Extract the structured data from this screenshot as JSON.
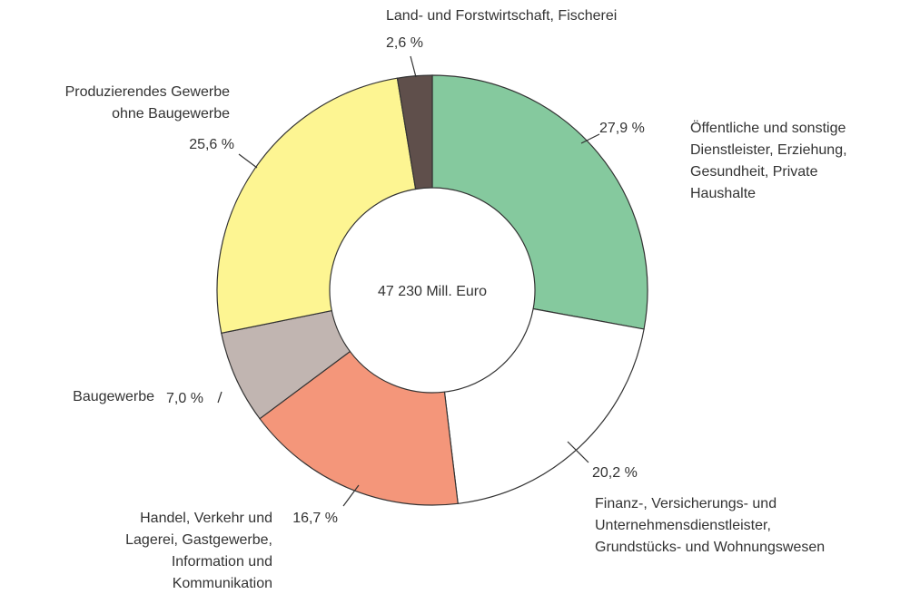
{
  "chart_data": {
    "type": "donut",
    "center_label": "47 230 Mill. Euro",
    "categories": [
      [
        "Öffentliche und sonstige",
        "Dienstleister, Erziehung,",
        "Gesundheit, Private",
        "Haushalte"
      ],
      [
        "Finanz-, Versicherungs- und",
        "Unternehmensdienstleister,",
        "Grundstücks- und Wohnungswesen"
      ],
      [
        "Handel, Verkehr und",
        "Lagerei, Gastgewerbe,",
        "Information und",
        "Kommunikation"
      ],
      [
        "Baugewerbe"
      ],
      [
        "Produzierendes Gewerbe",
        "ohne Baugewerbe"
      ],
      [
        "Land- und Forstwirtschaft, Fischerei"
      ]
    ],
    "values": [
      27.9,
      20.2,
      16.7,
      7.0,
      25.6,
      2.6
    ],
    "value_labels": [
      "27,9 %",
      "20,2 %",
      "16,7 %",
      "7,0 %",
      "25,6 %",
      "2,6 %"
    ],
    "colors": [
      "#85c99e",
      "#ffffff",
      "#f4967a",
      "#c1b5b1",
      "#fdf592",
      "#5f4f4b"
    ]
  }
}
